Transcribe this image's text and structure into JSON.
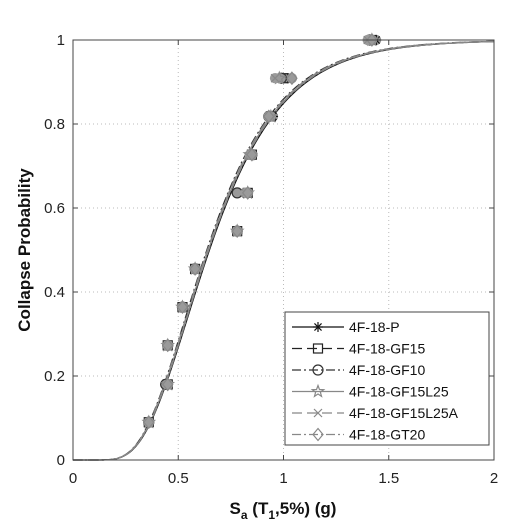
{
  "chart_data": {
    "type": "line",
    "title": "",
    "xlabel": {
      "base": "S",
      "base_sub": "a",
      "mid": " (T",
      "mid_sub": "1",
      "tail": ",5%) (g)"
    },
    "ylabel": "Collapse Probability",
    "xlim": [
      0,
      2
    ],
    "ylim": [
      0,
      1
    ],
    "xticks": [
      0,
      0.5,
      1,
      1.5,
      2
    ],
    "yticks": [
      0,
      0.2,
      0.4,
      0.6,
      0.8,
      1
    ],
    "xtick_labels": [
      "0",
      "0.5",
      "1",
      "1.5",
      "2"
    ],
    "ytick_labels": [
      "0",
      "0.2",
      "0.4",
      "0.6",
      "0.8",
      "1"
    ],
    "grid": true,
    "legend_position": "bottom-right",
    "series": [
      {
        "name": "4F-18-P",
        "marker": "asterisk",
        "dash": "",
        "color": "#111111",
        "median": 0.648,
        "beta": 0.42,
        "points": [
          [
            0.36,
            0.09
          ],
          [
            0.45,
            0.18
          ],
          [
            0.45,
            0.273
          ],
          [
            0.52,
            0.364
          ],
          [
            0.58,
            0.455
          ],
          [
            0.78,
            0.545
          ],
          [
            0.83,
            0.636
          ],
          [
            0.85,
            0.727
          ],
          [
            0.95,
            0.818
          ],
          [
            1.02,
            0.909
          ],
          [
            1.44,
            1.0
          ]
        ]
      },
      {
        "name": "4F-18-GF15",
        "marker": "square",
        "dash": "10,5",
        "color": "#222222",
        "median": 0.641,
        "beta": 0.42,
        "points": [
          [
            0.36,
            0.09
          ],
          [
            0.45,
            0.18
          ],
          [
            0.45,
            0.273
          ],
          [
            0.52,
            0.364
          ],
          [
            0.58,
            0.455
          ],
          [
            0.78,
            0.545
          ],
          [
            0.83,
            0.636
          ],
          [
            0.85,
            0.727
          ],
          [
            0.94,
            0.818
          ],
          [
            1.0,
            0.909
          ],
          [
            1.42,
            1.0
          ]
        ]
      },
      {
        "name": "4F-18-GF10",
        "marker": "circle",
        "dash": "9,3,2,3",
        "color": "#333333",
        "median": 0.636,
        "beta": 0.42,
        "points": [
          [
            0.36,
            0.09
          ],
          [
            0.44,
            0.18
          ],
          [
            0.45,
            0.273
          ],
          [
            0.52,
            0.364
          ],
          [
            0.58,
            0.455
          ],
          [
            0.78,
            0.545
          ],
          [
            0.78,
            0.636
          ],
          [
            0.85,
            0.727
          ],
          [
            0.93,
            0.818
          ],
          [
            0.99,
            0.909
          ],
          [
            1.41,
            1.0
          ]
        ]
      },
      {
        "name": "4F-18-GF15L25",
        "marker": "star",
        "dash": "",
        "color": "#888888",
        "median": 0.643,
        "beta": 0.42,
        "points": [
          [
            0.36,
            0.09
          ],
          [
            0.45,
            0.18
          ],
          [
            0.45,
            0.273
          ],
          [
            0.52,
            0.364
          ],
          [
            0.58,
            0.455
          ],
          [
            0.78,
            0.545
          ],
          [
            0.83,
            0.636
          ],
          [
            0.84,
            0.727
          ],
          [
            0.94,
            0.818
          ],
          [
            0.98,
            0.909
          ],
          [
            1.42,
            1.0
          ]
        ]
      },
      {
        "name": "4F-18-GF15L25A",
        "marker": "x",
        "dash": "10,5",
        "color": "#888888",
        "median": 0.639,
        "beta": 0.42,
        "points": [
          [
            0.36,
            0.09
          ],
          [
            0.45,
            0.18
          ],
          [
            0.45,
            0.273
          ],
          [
            0.52,
            0.364
          ],
          [
            0.58,
            0.455
          ],
          [
            0.78,
            0.545
          ],
          [
            0.82,
            0.636
          ],
          [
            0.85,
            0.727
          ],
          [
            0.93,
            0.818
          ],
          [
            0.96,
            0.909
          ],
          [
            1.4,
            1.0
          ]
        ]
      },
      {
        "name": "4F-18-GT20",
        "marker": "diamond",
        "dash": "9,3,2,3",
        "color": "#888888",
        "median": 0.645,
        "beta": 0.42,
        "points": [
          [
            0.36,
            0.09
          ],
          [
            0.45,
            0.18
          ],
          [
            0.45,
            0.273
          ],
          [
            0.52,
            0.364
          ],
          [
            0.58,
            0.455
          ],
          [
            0.78,
            0.545
          ],
          [
            0.83,
            0.636
          ],
          [
            0.85,
            0.727
          ],
          [
            0.93,
            0.818
          ],
          [
            1.04,
            0.909
          ],
          [
            1.42,
            1.0
          ]
        ]
      }
    ]
  }
}
